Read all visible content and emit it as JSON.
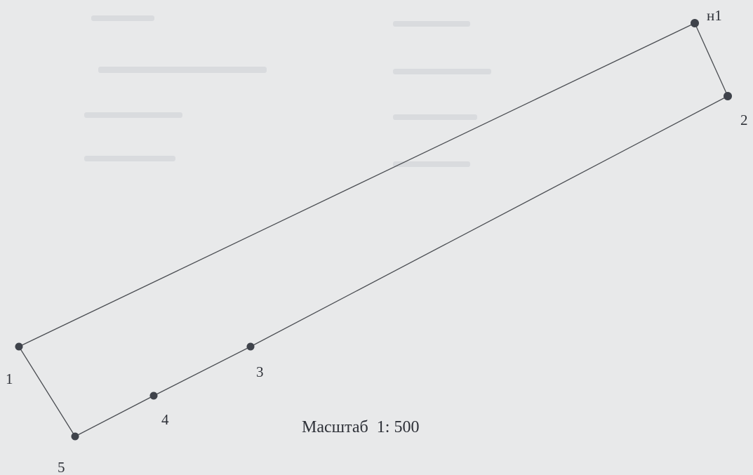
{
  "points": [
    {
      "id": "n1",
      "label": "н1"
    },
    {
      "id": "p2",
      "label": "2"
    },
    {
      "id": "p3",
      "label": "3"
    },
    {
      "id": "p4",
      "label": "4"
    },
    {
      "id": "p5",
      "label": "5"
    },
    {
      "id": "p1",
      "label": "1"
    }
  ],
  "scale_text": "Масштаб  1: 500",
  "colors": {
    "background": "#e8e9ea",
    "line": "#4a4d52",
    "vertex": "#3f434b",
    "text": "#2e3138"
  }
}
